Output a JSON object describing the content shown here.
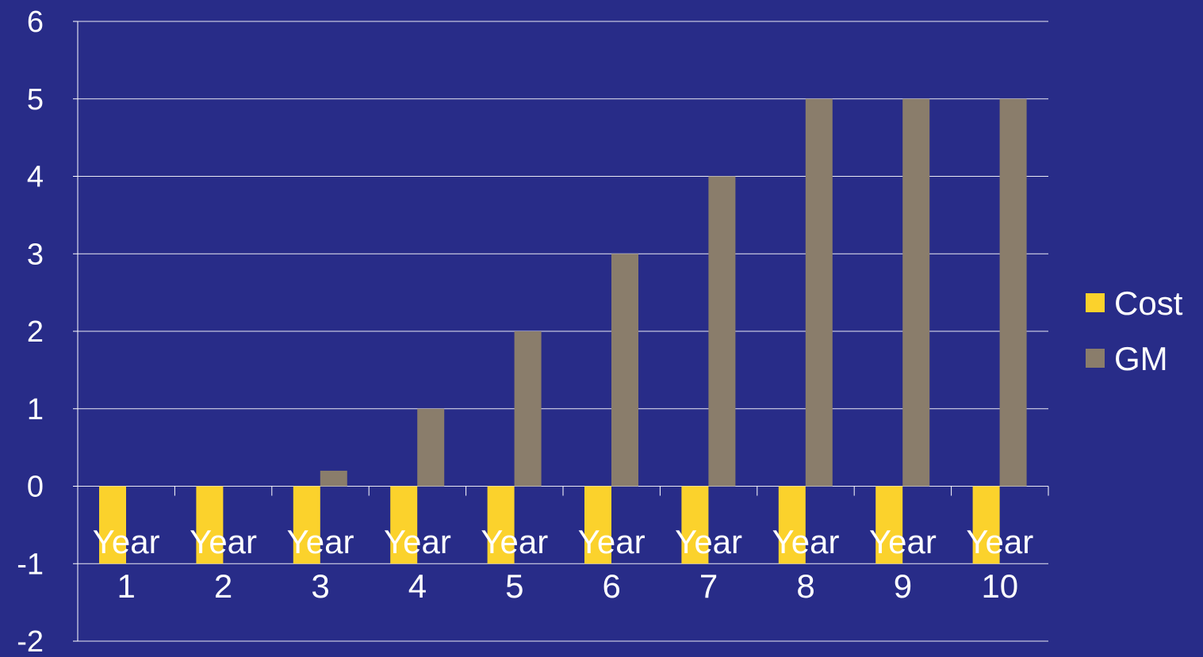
{
  "chart_data": {
    "type": "bar",
    "categories": [
      [
        "Year",
        "1"
      ],
      [
        "Year",
        "2"
      ],
      [
        "Year",
        "3"
      ],
      [
        "Year",
        "4"
      ],
      [
        "Year",
        "5"
      ],
      [
        "Year",
        "6"
      ],
      [
        "Year",
        "7"
      ],
      [
        "Year",
        "8"
      ],
      [
        "Year",
        "9"
      ],
      [
        "Year",
        "10"
      ]
    ],
    "series": [
      {
        "name": "Cost",
        "values": [
          -1,
          -1,
          -1,
          -1,
          -1,
          -1,
          -1,
          -1,
          -1,
          -1
        ],
        "color": "#fbd22c"
      },
      {
        "name": "GM",
        "values": [
          0,
          0,
          0.2,
          1,
          2,
          3,
          4,
          5,
          5,
          5
        ],
        "color": "#8a7d6b"
      }
    ],
    "ylim": [
      -2,
      6
    ],
    "yticks": [
      "6",
      "5",
      "4",
      "3",
      "2",
      "1",
      "0",
      "-1",
      "-2"
    ],
    "ytick_values": [
      6,
      5,
      4,
      3,
      2,
      1,
      0,
      -1,
      -2
    ],
    "grid": true,
    "legend": "right",
    "colors": {
      "background": "#282c88",
      "axis": "#ffffff",
      "grid": "#ffffff",
      "text": "#ffffff"
    }
  }
}
